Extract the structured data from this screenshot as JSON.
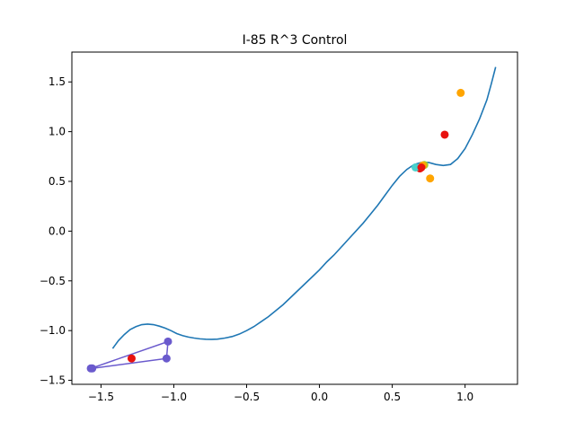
{
  "chart_data": {
    "type": "line",
    "title": "I-85 R^3 Control",
    "xlabel": "",
    "ylabel": "",
    "xlim": [
      -1.7,
      1.36
    ],
    "ylim": [
      -1.54,
      1.8
    ],
    "grid": false,
    "legend": "none",
    "x_ticks": [
      -1.5,
      -1.0,
      -0.5,
      0.0,
      0.5,
      1.0
    ],
    "x_tick_labels": [
      "−1.5",
      "−1.0",
      "−0.5",
      "0.0",
      "0.5",
      "1.0"
    ],
    "y_ticks": [
      -1.5,
      -1.0,
      -0.5,
      0.0,
      0.5,
      1.0,
      1.5
    ],
    "y_tick_labels": [
      "−1.5",
      "−1.0",
      "−0.5",
      "0.0",
      "0.5",
      "1.0",
      "1.5"
    ],
    "curve": {
      "color": "#1f77b4",
      "x": [
        -1.42,
        -1.38,
        -1.34,
        -1.3,
        -1.26,
        -1.22,
        -1.18,
        -1.14,
        -1.1,
        -1.06,
        -1.02,
        -0.98,
        -0.94,
        -0.9,
        -0.86,
        -0.82,
        -0.78,
        -0.74,
        -0.7,
        -0.65,
        -0.6,
        -0.55,
        -0.5,
        -0.45,
        -0.4,
        -0.35,
        -0.3,
        -0.25,
        -0.2,
        -0.15,
        -0.1,
        -0.05,
        0.0,
        0.05,
        0.1,
        0.15,
        0.2,
        0.25,
        0.3,
        0.35,
        0.4,
        0.45,
        0.5,
        0.55,
        0.6,
        0.65,
        0.7,
        0.75,
        0.8,
        0.85,
        0.9,
        0.95,
        1.0,
        1.05,
        1.1,
        1.15,
        1.18,
        1.21
      ],
      "y": [
        -1.18,
        -1.1,
        -1.04,
        -0.99,
        -0.96,
        -0.94,
        -0.935,
        -0.94,
        -0.955,
        -0.975,
        -1.0,
        -1.03,
        -1.05,
        -1.065,
        -1.075,
        -1.083,
        -1.087,
        -1.088,
        -1.086,
        -1.075,
        -1.06,
        -1.035,
        -1.0,
        -0.96,
        -0.91,
        -0.86,
        -0.8,
        -0.74,
        -0.67,
        -0.6,
        -0.53,
        -0.46,
        -0.39,
        -0.31,
        -0.24,
        -0.16,
        -0.08,
        0.0,
        0.08,
        0.17,
        0.26,
        0.36,
        0.46,
        0.55,
        0.62,
        0.67,
        0.69,
        0.69,
        0.67,
        0.66,
        0.67,
        0.73,
        0.83,
        0.97,
        1.13,
        1.32,
        1.48,
        1.65
      ]
    },
    "polygon": {
      "color": "#6a5acd",
      "x": [
        -1.57,
        -1.04,
        -1.05,
        -1.56
      ],
      "y": [
        -1.38,
        -1.11,
        -1.28,
        -1.38
      ]
    },
    "points": [
      {
        "x": -1.29,
        "y": -1.28,
        "color": "#e8120f"
      },
      {
        "x": 0.86,
        "y": 0.97,
        "color": "#e8120f"
      },
      {
        "x": 0.69,
        "y": 0.63,
        "color": "#e8120f"
      },
      {
        "x": 0.97,
        "y": 1.39,
        "color": "#ffa500"
      },
      {
        "x": 0.76,
        "y": 0.53,
        "color": "#ffa500"
      },
      {
        "x": 0.66,
        "y": 0.64,
        "color": "#48d1cc"
      },
      {
        "x": 0.72,
        "y": 0.665,
        "color": "#9acd32"
      },
      {
        "x": 0.71,
        "y": 0.66,
        "color": "#ffa500"
      },
      {
        "x": 0.7,
        "y": 0.64,
        "color": "#e8120f"
      }
    ]
  }
}
